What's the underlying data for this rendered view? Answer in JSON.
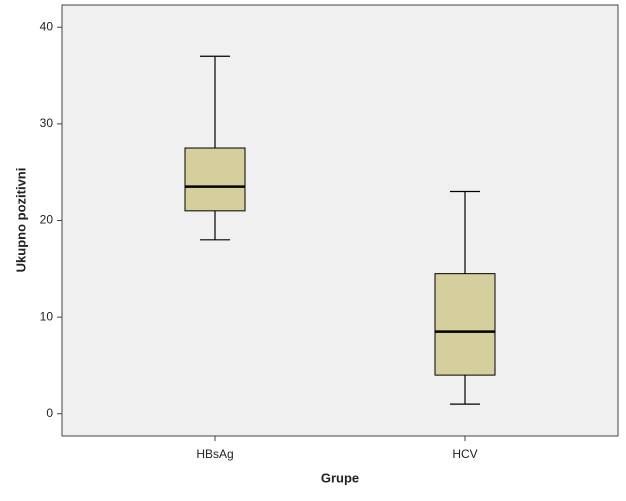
{
  "chart_data": {
    "type": "box",
    "x_label": "Grupe",
    "y_label": "Ukupno pozitivni",
    "categories": [
      "HBsAg",
      "HCV"
    ],
    "boxes": [
      {
        "min": 18,
        "q1": 21,
        "median": 23.5,
        "q3": 27.5,
        "max": 37
      },
      {
        "min": 1,
        "q1": 4,
        "median": 8.5,
        "q3": 14.5,
        "max": 23
      }
    ],
    "color": "#d4cf9c",
    "ylim": [
      -2.3,
      42.3
    ],
    "yticks": [
      0,
      10,
      20,
      30,
      40
    ]
  }
}
